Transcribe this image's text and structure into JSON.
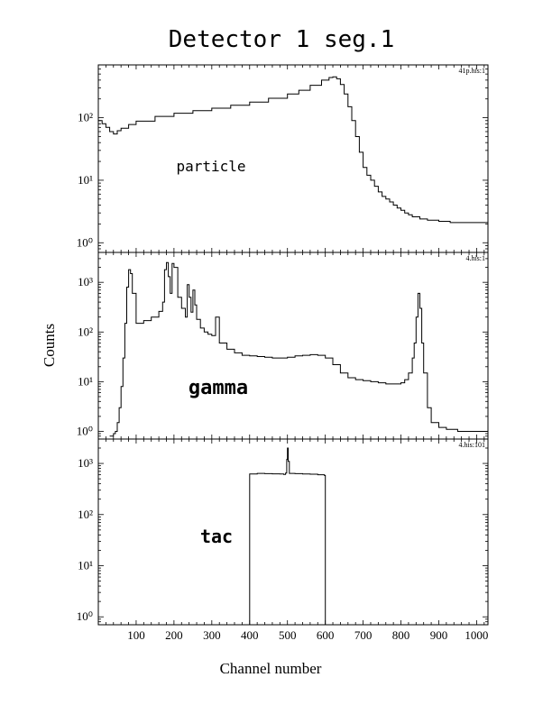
{
  "figure": {
    "title": "Detector 1 seg.1",
    "xlabel": "Channel number",
    "ylabel": "Counts"
  },
  "chart_data": [
    {
      "type": "line",
      "label": "particle",
      "histogram_id": "41p.his:1",
      "xlim": [
        0,
        1030
      ],
      "ylim": [
        0.7,
        700
      ],
      "yscale": "log",
      "x_ticks": [
        100,
        200,
        300,
        400,
        500,
        600,
        700,
        800,
        900,
        1000
      ],
      "y_ticks": [
        {
          "value": 1,
          "label": "10⁰"
        },
        {
          "value": 10,
          "label": "10¹"
        },
        {
          "value": 100,
          "label": "10²"
        }
      ],
      "grid": false,
      "series": [
        {
          "x": [
            0,
            10,
            20,
            30,
            40,
            50,
            60,
            80,
            100,
            150,
            200,
            250,
            300,
            350,
            400,
            450,
            500,
            530,
            560,
            590,
            610,
            620,
            630,
            640,
            650,
            660,
            670,
            680,
            690,
            700,
            710,
            720,
            730,
            740,
            750,
            760,
            770,
            780,
            790,
            800,
            810,
            820,
            830,
            850,
            870,
            900,
            930,
            960,
            1000,
            1030
          ],
          "y": [
            90,
            80,
            70,
            60,
            55,
            62,
            68,
            78,
            88,
            105,
            118,
            130,
            142,
            158,
            178,
            205,
            240,
            275,
            330,
            400,
            440,
            450,
            420,
            340,
            240,
            150,
            90,
            50,
            28,
            16,
            12,
            10,
            8,
            6.5,
            5.5,
            5,
            4.5,
            4,
            3.6,
            3.3,
            3,
            2.8,
            2.6,
            2.4,
            2.3,
            2.2,
            2.1,
            2.1,
            2.1,
            2.2
          ]
        }
      ]
    },
    {
      "type": "line",
      "label": "gamma",
      "histogram_id": "4.his:1",
      "xlim": [
        0,
        1030
      ],
      "ylim": [
        0.7,
        4000
      ],
      "yscale": "log",
      "x_ticks": [
        100,
        200,
        300,
        400,
        500,
        600,
        700,
        800,
        900,
        1000
      ],
      "y_ticks": [
        {
          "value": 1,
          "label": "10⁰"
        },
        {
          "value": 10,
          "label": "10¹"
        },
        {
          "value": 100,
          "label": "10²"
        },
        {
          "value": 1000,
          "label": "10³"
        }
      ],
      "grid": false,
      "series": [
        {
          "x": [
            30,
            40,
            45,
            50,
            55,
            60,
            65,
            70,
            75,
            80,
            85,
            90,
            100,
            120,
            140,
            160,
            170,
            175,
            180,
            185,
            190,
            195,
            200,
            210,
            220,
            230,
            235,
            240,
            245,
            250,
            255,
            260,
            270,
            280,
            290,
            300,
            310,
            320,
            340,
            360,
            380,
            400,
            420,
            440,
            460,
            480,
            500,
            520,
            540,
            560,
            580,
            600,
            620,
            640,
            660,
            680,
            700,
            720,
            740,
            760,
            780,
            800,
            810,
            820,
            830,
            835,
            840,
            845,
            850,
            855,
            860,
            870,
            880,
            900,
            920,
            950,
            980,
            1000,
            1030
          ],
          "y": [
            0.8,
            0.9,
            1,
            1.5,
            3,
            8,
            30,
            150,
            800,
            1800,
            1500,
            600,
            150,
            170,
            200,
            260,
            400,
            1800,
            2500,
            1300,
            600,
            2400,
            2000,
            500,
            300,
            200,
            900,
            500,
            250,
            700,
            350,
            180,
            120,
            100,
            90,
            85,
            200,
            60,
            45,
            38,
            34,
            33,
            32,
            31,
            30,
            30,
            31,
            33,
            34,
            35,
            34,
            30,
            22,
            15,
            12,
            11,
            10.5,
            10,
            9.5,
            9,
            9,
            9.5,
            11,
            15,
            30,
            60,
            200,
            600,
            300,
            60,
            15,
            3,
            1.5,
            1.2,
            1.1,
            1,
            1,
            1,
            1
          ]
        }
      ]
    },
    {
      "type": "line",
      "label": "tac",
      "histogram_id": "4.his:101",
      "xlim": [
        0,
        1030
      ],
      "ylim": [
        0.7,
        3000
      ],
      "yscale": "log",
      "x_ticks": [
        100,
        200,
        300,
        400,
        500,
        600,
        700,
        800,
        900,
        1000
      ],
      "x_tick_labels": [
        "100",
        "200",
        "300",
        "400",
        "500",
        "600",
        "700",
        "800",
        "900",
        "1000"
      ],
      "y_ticks": [
        {
          "value": 1,
          "label": "10⁰"
        },
        {
          "value": 10,
          "label": "10¹"
        },
        {
          "value": 100,
          "label": "10²"
        },
        {
          "value": 1000,
          "label": "10³"
        }
      ],
      "grid": false,
      "series": [
        {
          "x": [
            398,
            400,
            420,
            440,
            460,
            480,
            490,
            495,
            498,
            500,
            502,
            505,
            520,
            540,
            560,
            580,
            598,
            600
          ],
          "y": [
            0.7,
            620,
            640,
            630,
            625,
            620,
            610,
            650,
            1200,
            2000,
            1100,
            640,
            630,
            620,
            615,
            600,
            580,
            0.7
          ]
        }
      ]
    }
  ]
}
